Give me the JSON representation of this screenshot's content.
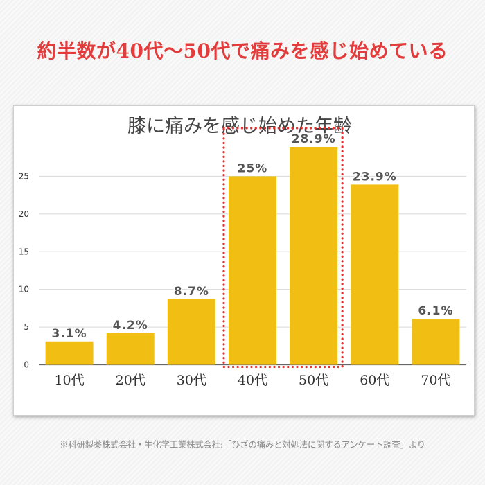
{
  "headline": "約半数が40代～50代で痛みを感じ始めている",
  "footnote": "※科研製薬株式会社・生化学工業株式会社:「ひざの痛みと対処法に関するアンケート調査」より",
  "colors": {
    "headline": "#e33c3c",
    "bar": "#f1bf13",
    "highlight_border": "#e53030",
    "grid": "#d8d8d8"
  },
  "chart_data": {
    "type": "bar",
    "title": "膝に痛みを感じ始めた年齢",
    "categories": [
      "10代",
      "20代",
      "30代",
      "40代",
      "50代",
      "60代",
      "70代"
    ],
    "values": [
      3.1,
      4.2,
      8.7,
      25,
      28.9,
      23.9,
      6.1
    ],
    "value_labels": [
      "3.1%",
      "4.2%",
      "8.7%",
      "25%",
      "28.9%",
      "23.9%",
      "6.1%"
    ],
    "yticks": [
      0,
      5,
      10,
      15,
      20,
      25
    ],
    "ylim": [
      0,
      30
    ],
    "grid": true,
    "legend": false,
    "highlight_categories": [
      "40代",
      "50代"
    ]
  }
}
